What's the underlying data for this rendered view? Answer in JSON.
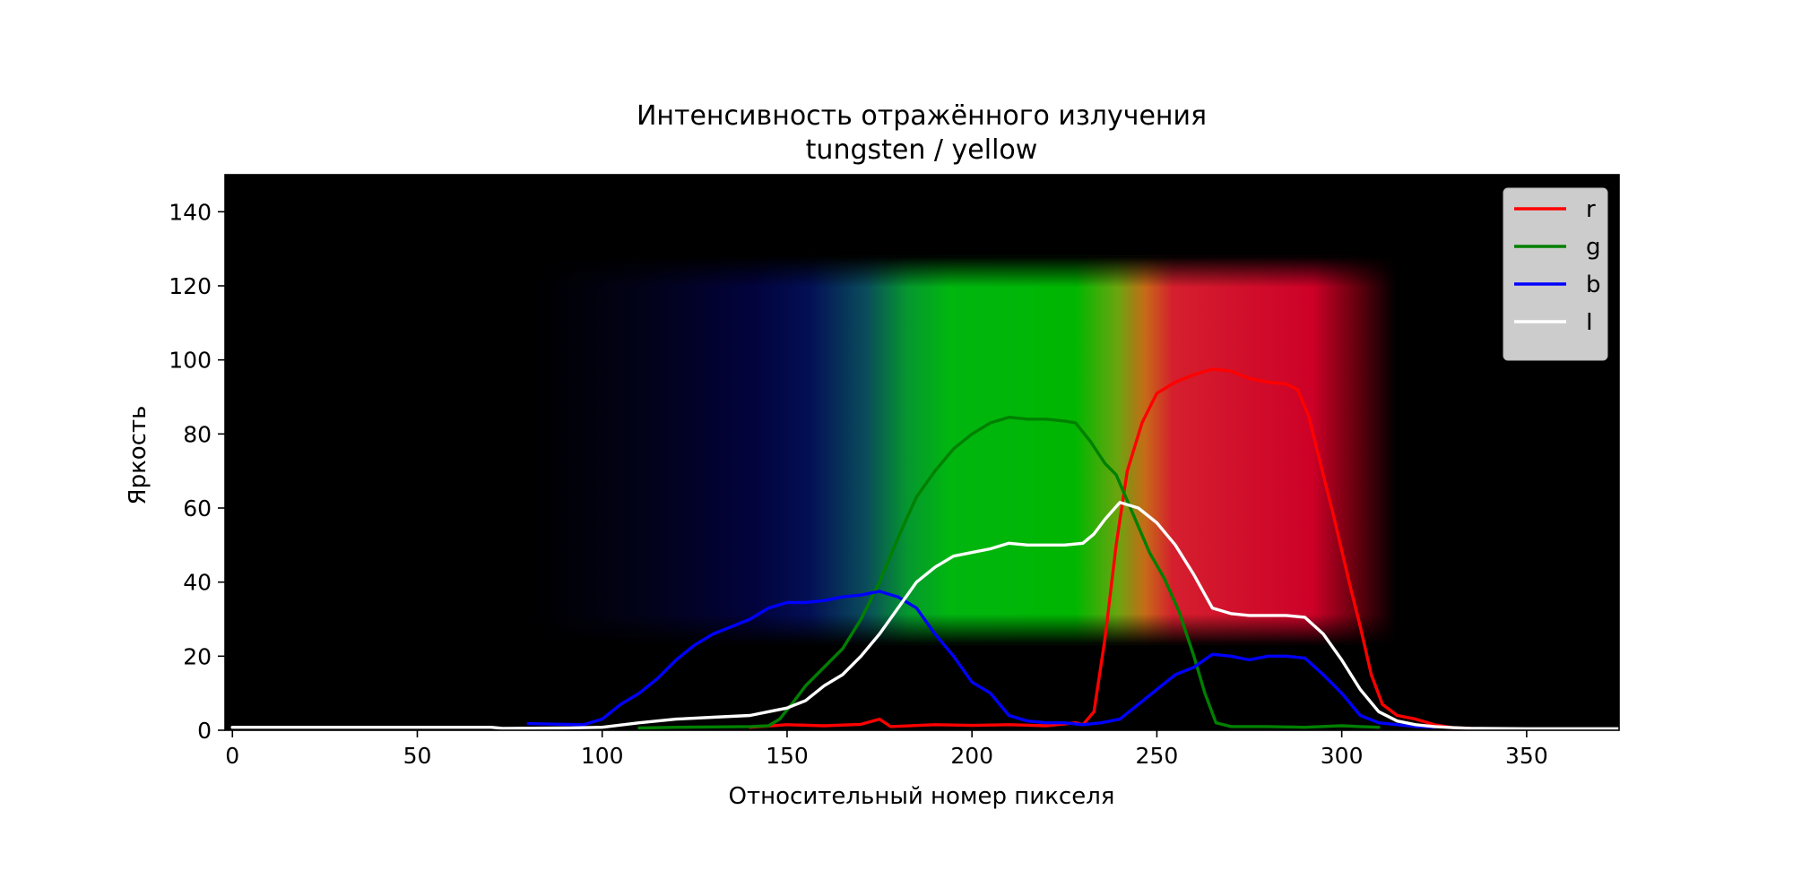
{
  "chart_data": {
    "type": "line",
    "title": "Интенсивность отражённого излучения",
    "subtitle": "tungsten / yellow",
    "xlabel": "Относительный номер пикселя",
    "ylabel": "Яркость",
    "xlim": [
      -2,
      375
    ],
    "ylim": [
      0,
      150
    ],
    "xticks": [
      0,
      50,
      100,
      150,
      200,
      250,
      300,
      350
    ],
    "yticks": [
      0,
      20,
      40,
      60,
      80,
      100,
      120,
      140
    ],
    "grid": false,
    "legend_position": "top-right",
    "background": "spectrum image",
    "series": [
      {
        "name": "r",
        "color": "#ff0000",
        "points": [
          [
            140,
            0.8
          ],
          [
            150,
            1.5
          ],
          [
            160,
            1.2
          ],
          [
            170,
            1.6
          ],
          [
            175,
            3
          ],
          [
            178,
            1
          ],
          [
            190,
            1.5
          ],
          [
            200,
            1.3
          ],
          [
            210,
            1.5
          ],
          [
            220,
            1.2
          ],
          [
            228,
            2
          ],
          [
            230,
            1.5
          ],
          [
            233,
            5
          ],
          [
            236,
            25
          ],
          [
            239,
            50
          ],
          [
            242,
            70
          ],
          [
            246,
            83
          ],
          [
            250,
            91
          ],
          [
            255,
            94
          ],
          [
            260,
            96
          ],
          [
            265,
            97.5
          ],
          [
            270,
            97
          ],
          [
            275,
            95
          ],
          [
            280,
            94
          ],
          [
            285,
            93.5
          ],
          [
            288,
            92
          ],
          [
            291,
            85
          ],
          [
            294,
            73
          ],
          [
            298,
            57
          ],
          [
            302,
            40
          ],
          [
            305,
            28
          ],
          [
            308,
            15
          ],
          [
            311,
            7
          ],
          [
            315,
            4
          ],
          [
            320,
            3
          ],
          [
            325,
            1.5
          ],
          [
            330,
            0.7
          ],
          [
            335,
            0.5
          ]
        ]
      },
      {
        "name": "g",
        "color": "#008000",
        "points": [
          [
            110,
            0.6
          ],
          [
            120,
            0.8
          ],
          [
            130,
            0.9
          ],
          [
            140,
            1
          ],
          [
            145,
            1.2
          ],
          [
            148,
            3
          ],
          [
            152,
            8
          ],
          [
            155,
            12
          ],
          [
            160,
            17
          ],
          [
            165,
            22
          ],
          [
            170,
            30
          ],
          [
            175,
            40
          ],
          [
            180,
            52
          ],
          [
            185,
            63
          ],
          [
            190,
            70
          ],
          [
            195,
            76
          ],
          [
            200,
            80
          ],
          [
            205,
            83
          ],
          [
            210,
            84.5
          ],
          [
            215,
            84
          ],
          [
            220,
            84
          ],
          [
            225,
            83.5
          ],
          [
            228,
            83
          ],
          [
            232,
            78
          ],
          [
            236,
            72
          ],
          [
            239,
            69
          ],
          [
            242,
            62
          ],
          [
            245,
            55
          ],
          [
            248,
            48
          ],
          [
            252,
            41
          ],
          [
            256,
            32
          ],
          [
            260,
            20
          ],
          [
            263,
            10
          ],
          [
            266,
            2
          ],
          [
            270,
            1
          ],
          [
            280,
            1
          ],
          [
            290,
            0.8
          ],
          [
            300,
            1.2
          ],
          [
            305,
            1
          ],
          [
            310,
            0.8
          ]
        ]
      },
      {
        "name": "b",
        "color": "#0000ff",
        "points": [
          [
            80,
            1.8
          ],
          [
            90,
            1.6
          ],
          [
            95,
            1.5
          ],
          [
            100,
            3
          ],
          [
            105,
            7
          ],
          [
            110,
            10
          ],
          [
            115,
            14
          ],
          [
            120,
            19
          ],
          [
            125,
            23
          ],
          [
            130,
            26
          ],
          [
            135,
            28
          ],
          [
            140,
            30
          ],
          [
            145,
            33
          ],
          [
            150,
            34.5
          ],
          [
            155,
            34.5
          ],
          [
            160,
            35
          ],
          [
            165,
            36
          ],
          [
            170,
            36.5
          ],
          [
            175,
            37.5
          ],
          [
            180,
            36
          ],
          [
            185,
            33
          ],
          [
            190,
            26
          ],
          [
            195,
            20
          ],
          [
            200,
            13
          ],
          [
            205,
            10
          ],
          [
            210,
            4
          ],
          [
            215,
            2.5
          ],
          [
            220,
            2
          ],
          [
            225,
            2
          ],
          [
            230,
            1.5
          ],
          [
            235,
            2
          ],
          [
            240,
            3
          ],
          [
            245,
            7
          ],
          [
            250,
            11
          ],
          [
            255,
            15
          ],
          [
            260,
            17
          ],
          [
            265,
            20.5
          ],
          [
            270,
            20
          ],
          [
            275,
            19
          ],
          [
            280,
            20
          ],
          [
            285,
            20
          ],
          [
            290,
            19.5
          ],
          [
            295,
            15
          ],
          [
            300,
            10
          ],
          [
            305,
            4
          ],
          [
            310,
            2
          ],
          [
            315,
            1.5
          ],
          [
            320,
            1
          ],
          [
            325,
            0.8
          ]
        ]
      },
      {
        "name": "I",
        "color": "#ffffff",
        "points": [
          [
            0,
            0.8
          ],
          [
            20,
            0.8
          ],
          [
            50,
            0.8
          ],
          [
            70,
            0.8
          ],
          [
            73,
            0.5
          ],
          [
            90,
            0.6
          ],
          [
            100,
            0.8
          ],
          [
            110,
            2
          ],
          [
            120,
            3
          ],
          [
            130,
            3.5
          ],
          [
            140,
            4
          ],
          [
            145,
            5
          ],
          [
            150,
            6
          ],
          [
            155,
            8
          ],
          [
            160,
            12
          ],
          [
            165,
            15
          ],
          [
            170,
            20
          ],
          [
            175,
            26
          ],
          [
            180,
            33
          ],
          [
            185,
            40
          ],
          [
            190,
            44
          ],
          [
            195,
            47
          ],
          [
            200,
            48
          ],
          [
            205,
            49
          ],
          [
            210,
            50.5
          ],
          [
            215,
            50
          ],
          [
            220,
            50
          ],
          [
            225,
            50
          ],
          [
            230,
            50.5
          ],
          [
            233,
            53
          ],
          [
            236,
            57
          ],
          [
            240,
            61.5
          ],
          [
            245,
            60
          ],
          [
            250,
            56
          ],
          [
            255,
            50
          ],
          [
            260,
            42
          ],
          [
            265,
            33
          ],
          [
            270,
            31.5
          ],
          [
            275,
            31
          ],
          [
            280,
            31
          ],
          [
            285,
            31
          ],
          [
            290,
            30.5
          ],
          [
            295,
            26
          ],
          [
            300,
            19
          ],
          [
            305,
            11
          ],
          [
            310,
            5
          ],
          [
            315,
            2.5
          ],
          [
            320,
            1.5
          ],
          [
            325,
            1
          ],
          [
            330,
            0.7
          ],
          [
            335,
            0.5
          ],
          [
            350,
            0.4
          ],
          [
            375,
            0.4
          ]
        ]
      }
    ]
  }
}
